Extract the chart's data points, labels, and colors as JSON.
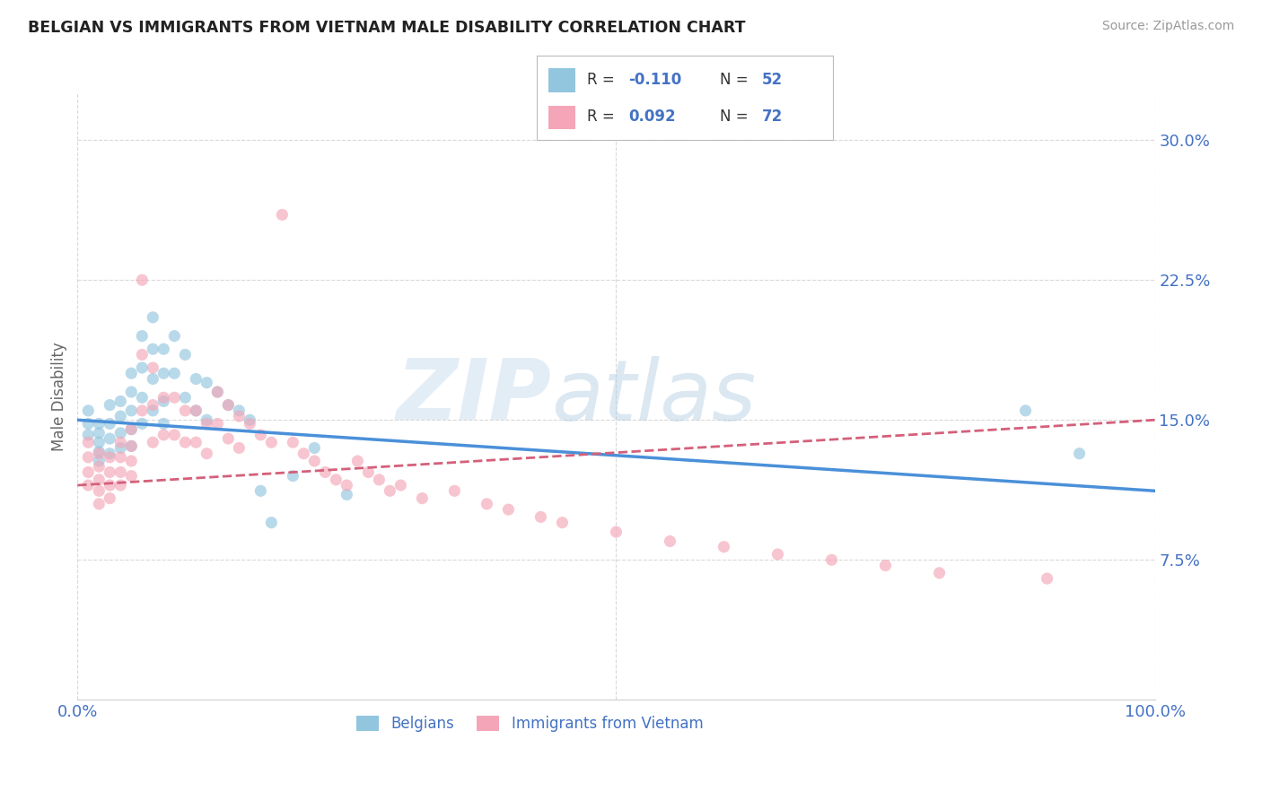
{
  "title": "BELGIAN VS IMMIGRANTS FROM VIETNAM MALE DISABILITY CORRELATION CHART",
  "source": "Source: ZipAtlas.com",
  "ylabel": "Male Disability",
  "watermark_zip": "ZIP",
  "watermark_atlas": "atlas",
  "legend_r1": "-0.110",
  "legend_n1": "52",
  "legend_r2": "0.092",
  "legend_n2": "72",
  "xmin": 0.0,
  "xmax": 1.0,
  "ymin": 0.0,
  "ymax": 0.325,
  "yticks": [
    0.075,
    0.15,
    0.225,
    0.3
  ],
  "ytick_labels": [
    "7.5%",
    "15.0%",
    "22.5%",
    "30.0%"
  ],
  "blue_color": "#92c5de",
  "pink_color": "#f4a6b8",
  "blue_line_color": "#4a90d9",
  "pink_line_color": "#d4607a",
  "axis_label_color": "#4472c4",
  "grid_color": "#d0d0d0",
  "background_color": "#ffffff",
  "belgians_x": [
    0.01,
    0.01,
    0.01,
    0.02,
    0.02,
    0.02,
    0.02,
    0.02,
    0.03,
    0.03,
    0.03,
    0.03,
    0.04,
    0.04,
    0.04,
    0.04,
    0.05,
    0.05,
    0.05,
    0.05,
    0.05,
    0.06,
    0.06,
    0.06,
    0.06,
    0.07,
    0.07,
    0.07,
    0.07,
    0.08,
    0.08,
    0.08,
    0.08,
    0.09,
    0.09,
    0.1,
    0.1,
    0.11,
    0.11,
    0.12,
    0.12,
    0.13,
    0.14,
    0.15,
    0.16,
    0.17,
    0.18,
    0.2,
    0.22,
    0.25,
    0.88,
    0.93
  ],
  "belgians_y": [
    0.155,
    0.148,
    0.142,
    0.148,
    0.143,
    0.138,
    0.133,
    0.128,
    0.158,
    0.148,
    0.14,
    0.132,
    0.16,
    0.152,
    0.143,
    0.135,
    0.175,
    0.165,
    0.155,
    0.145,
    0.136,
    0.195,
    0.178,
    0.162,
    0.148,
    0.205,
    0.188,
    0.172,
    0.155,
    0.188,
    0.175,
    0.16,
    0.148,
    0.195,
    0.175,
    0.185,
    0.162,
    0.172,
    0.155,
    0.17,
    0.15,
    0.165,
    0.158,
    0.155,
    0.15,
    0.112,
    0.095,
    0.12,
    0.135,
    0.11,
    0.155,
    0.132
  ],
  "vietnam_x": [
    0.01,
    0.01,
    0.01,
    0.01,
    0.02,
    0.02,
    0.02,
    0.02,
    0.02,
    0.03,
    0.03,
    0.03,
    0.03,
    0.04,
    0.04,
    0.04,
    0.04,
    0.05,
    0.05,
    0.05,
    0.05,
    0.06,
    0.06,
    0.06,
    0.07,
    0.07,
    0.07,
    0.08,
    0.08,
    0.09,
    0.09,
    0.1,
    0.1,
    0.11,
    0.11,
    0.12,
    0.12,
    0.13,
    0.13,
    0.14,
    0.14,
    0.15,
    0.15,
    0.16,
    0.17,
    0.18,
    0.19,
    0.2,
    0.21,
    0.22,
    0.23,
    0.24,
    0.25,
    0.26,
    0.27,
    0.28,
    0.29,
    0.3,
    0.32,
    0.35,
    0.38,
    0.4,
    0.43,
    0.45,
    0.5,
    0.55,
    0.6,
    0.65,
    0.7,
    0.75,
    0.8,
    0.9
  ],
  "vietnam_y": [
    0.138,
    0.13,
    0.122,
    0.115,
    0.132,
    0.125,
    0.118,
    0.112,
    0.105,
    0.13,
    0.122,
    0.115,
    0.108,
    0.138,
    0.13,
    0.122,
    0.115,
    0.145,
    0.136,
    0.128,
    0.12,
    0.225,
    0.185,
    0.155,
    0.178,
    0.158,
    0.138,
    0.162,
    0.142,
    0.162,
    0.142,
    0.155,
    0.138,
    0.155,
    0.138,
    0.148,
    0.132,
    0.165,
    0.148,
    0.158,
    0.14,
    0.152,
    0.135,
    0.148,
    0.142,
    0.138,
    0.26,
    0.138,
    0.132,
    0.128,
    0.122,
    0.118,
    0.115,
    0.128,
    0.122,
    0.118,
    0.112,
    0.115,
    0.108,
    0.112,
    0.105,
    0.102,
    0.098,
    0.095,
    0.09,
    0.085,
    0.082,
    0.078,
    0.075,
    0.072,
    0.068,
    0.065
  ]
}
